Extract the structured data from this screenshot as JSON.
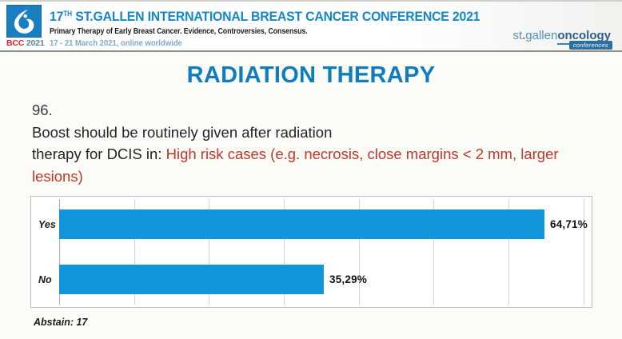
{
  "header": {
    "logo": {
      "name": "BCC",
      "year": "2021"
    },
    "title": {
      "prefix": "17",
      "sup": "TH",
      "rest": " ST.GALLEN INTERNATIONAL BREAST CANCER CONFERENCE 2021"
    },
    "subtitle": "Primary Therapy of Early Breast Cancer. Evidence, Controversies, Consensus.",
    "dates": "17 - 21 March 2021, online worldwide",
    "brand": {
      "st": "st",
      "dot": ".",
      "gallen": "gallen",
      "oncology": "oncology",
      "badge": "conferences"
    }
  },
  "main": {
    "page_title": "RADIATION THERAPY",
    "question_number": "96.",
    "question_line1": "Boost should be routinely given after radiation",
    "question_line2_black": "therapy for DCIS in: ",
    "question_red": "High risk cases (e.g. necrosis, close margins < 2 mm, larger lesions)",
    "abstain": "Abstain: 17"
  },
  "chart_data": {
    "type": "bar",
    "orientation": "horizontal",
    "categories": [
      "Yes",
      "No"
    ],
    "values": [
      64.71,
      35.29
    ],
    "value_labels": [
      "64,71%",
      "35,29%"
    ],
    "xlim": [
      0,
      71
    ],
    "gridline_step": 10,
    "grid": true,
    "legend": false,
    "bar_color": "#1196DB",
    "title": "",
    "xlabel": "",
    "ylabel": ""
  },
  "colors": {
    "header_title_blue": "#1487C8",
    "page_title_blue": "#0F7CC0",
    "dates_blue": "#7FA9C9",
    "question_red": "#BE372B",
    "bcc_red": "#DC2127",
    "bcc_year_gray": "#5E7F9C",
    "brand_light_blue": "#4E92C2",
    "brand_dark_blue": "#2A5F92",
    "brand_dot_orange": "#E2572B"
  }
}
